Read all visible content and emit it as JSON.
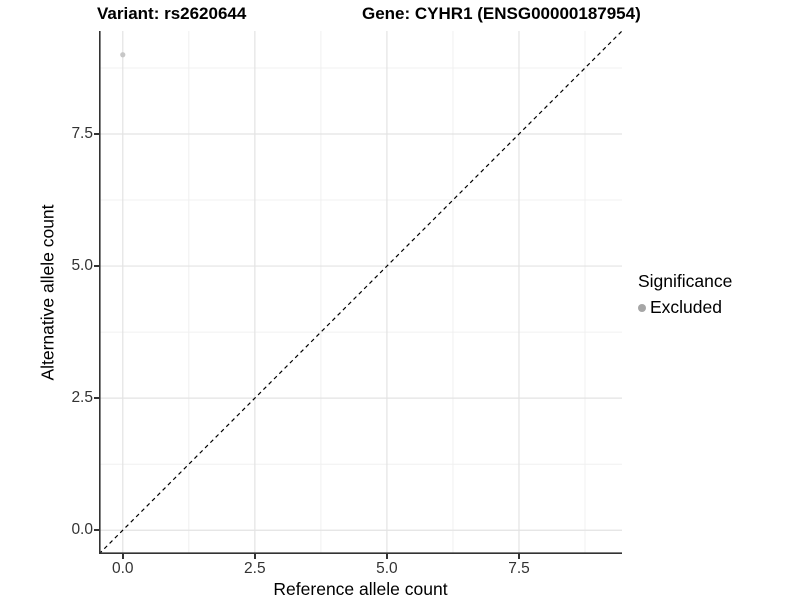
{
  "title": {
    "variant": "Variant: rs2620644",
    "gene": "Gene: CYHR1 (ENSG00000187954)"
  },
  "axes": {
    "x": {
      "label": "Reference allele count",
      "tick_labels": [
        "0.0",
        "2.5",
        "5.0",
        "7.5"
      ],
      "tick_values": [
        0,
        2.5,
        5,
        7.5
      ]
    },
    "y": {
      "label": "Alternative allele count",
      "tick_labels": [
        "0.0",
        "2.5",
        "5.0",
        "7.5"
      ],
      "tick_values": [
        0,
        2.5,
        5,
        7.5
      ]
    }
  },
  "legend": {
    "title": "Significance",
    "position": "right",
    "items": [
      {
        "label": "Excluded",
        "color": "#a6a6a6"
      }
    ]
  },
  "colors": {
    "background": "#ffffff",
    "grid_major": "#e3e3e3",
    "grid_minor": "#f0f0f0",
    "axis_line": "#333333",
    "dashed_line": "#000000",
    "point": "#c7c7c7"
  },
  "chart_data": {
    "type": "scatter",
    "title": "Variant: rs2620644    Gene: CYHR1 (ENSG00000187954)",
    "xlabel": "Reference allele count",
    "ylabel": "Alternative allele count",
    "xlim": [
      -0.45,
      9.45
    ],
    "ylim": [
      -0.45,
      9.45
    ],
    "x_ticks": [
      0,
      2.5,
      5,
      7.5
    ],
    "y_ticks": [
      0,
      2.5,
      5,
      7.5
    ],
    "minor_ticks": [
      1.25,
      3.75,
      6.25,
      8.75
    ],
    "grid": "major+minor",
    "aspect": "equal",
    "legend_position": "right",
    "series": [
      {
        "name": "Excluded",
        "color": "#c7c7c7",
        "points": [
          {
            "x": 0,
            "y": 9
          }
        ]
      }
    ],
    "reference_line": {
      "type": "identity y=x",
      "style": "dashed",
      "color": "#000000"
    }
  }
}
